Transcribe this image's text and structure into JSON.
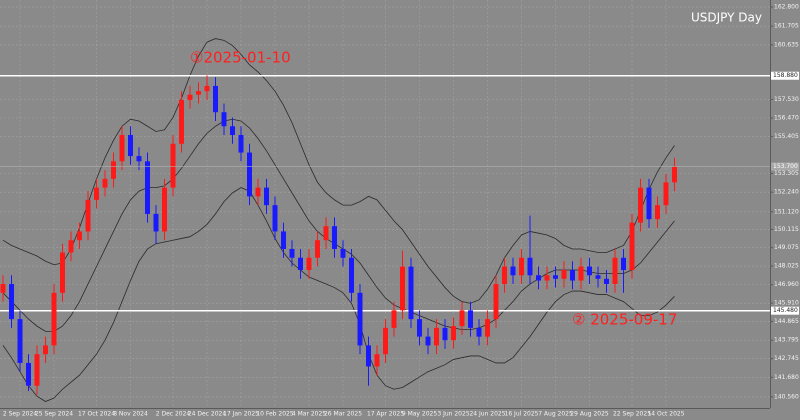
{
  "chart_data": {
    "type": "candlestick",
    "title": "USDJPY  Day",
    "annotations": [
      {
        "text": "①2025-01-10",
        "color": "#ff2020"
      },
      {
        "text": "② 2025-09-17",
        "color": "#ff2020"
      }
    ],
    "categories": [
      null,
      null,
      "2 Sep 2024",
      null,
      null,
      null,
      "25 Sep 2024",
      null,
      null,
      null,
      null,
      "17 Oct 2024",
      null,
      null,
      null,
      "8 Nov 2024",
      null,
      null,
      null,
      null,
      "2 Dec 2024",
      null,
      null,
      null,
      "24 Dec 2024",
      null,
      null,
      null,
      "17 Jan 2025",
      null,
      null,
      null,
      "10 Feb 2025",
      null,
      null,
      null,
      "4 Mar 2025",
      null,
      null,
      null,
      "26 Mar 2025",
      null,
      null,
      null,
      null,
      "17 Apr 2025",
      null,
      null,
      null,
      "9 May 2025",
      null,
      null,
      null,
      "3 Jun 2025",
      null,
      null,
      null,
      "24 Jun 2025",
      null,
      null,
      null,
      "16 Jul 2025",
      null,
      null,
      null,
      "7 Aug 2025",
      null,
      null,
      null,
      "29 Aug 2025",
      null,
      null,
      null,
      null,
      "22 Sep 2025",
      null,
      null,
      null,
      "14 Oct 2025",
      null
    ],
    "open": [
      146.5,
      147.0,
      145.0,
      142.5,
      141.2,
      143.0,
      143.5,
      146.5,
      148.8,
      149.5,
      150.0,
      151.8,
      152.5,
      153.0,
      154.0,
      155.5,
      154.3,
      154.0,
      151.0,
      150.0,
      152.5,
      155.0,
      157.5,
      157.8,
      158.0,
      158.3,
      156.8,
      156.0,
      155.5,
      154.5,
      152.0,
      152.5,
      151.5,
      150.0,
      149.0,
      148.5,
      147.8,
      148.5,
      149.5,
      150.3,
      149.0,
      148.5,
      146.5,
      143.5,
      142.3,
      143.0,
      144.5,
      145.5,
      148.0,
      145.0,
      144.0,
      143.5,
      144.5,
      143.8,
      144.6,
      145.5,
      144.5,
      144.0,
      145.0,
      147.0,
      148.0,
      147.5,
      148.5,
      147.5,
      147.2,
      147.5,
      147.3,
      147.8,
      147.2,
      148.0,
      147.5,
      147.3,
      147.0,
      148.5,
      147.8,
      150.5,
      152.5,
      150.7,
      151.5,
      152.8
    ],
    "high": [
      147.5,
      147.5,
      145.5,
      143.0,
      143.5,
      144.0,
      147.0,
      149.3,
      150.0,
      150.5,
      152.3,
      153.0,
      153.5,
      154.5,
      156.0,
      156.0,
      154.8,
      154.5,
      151.5,
      153.0,
      155.5,
      158.0,
      158.3,
      158.5,
      158.9,
      158.8,
      157.3,
      156.5,
      156.0,
      155.0,
      153.0,
      153.0,
      152.0,
      150.5,
      149.5,
      149.0,
      149.0,
      150.0,
      150.8,
      150.8,
      149.5,
      149.0,
      147.0,
      144.0,
      143.5,
      145.0,
      146.0,
      148.9,
      148.5,
      145.5,
      144.5,
      145.0,
      145.0,
      145.1,
      146.0,
      146.0,
      145.0,
      145.5,
      147.5,
      148.5,
      148.5,
      149.0,
      150.9,
      148.0,
      148.0,
      148.0,
      148.3,
      148.3,
      148.5,
      148.5,
      148.0,
      147.8,
      149.0,
      149.0,
      151.0,
      153.0,
      153.0,
      152.0,
      153.3,
      154.2
    ],
    "low": [
      146.0,
      144.5,
      142.0,
      140.9,
      140.7,
      142.5,
      143.0,
      146.0,
      148.3,
      149.0,
      149.5,
      151.3,
      152.0,
      152.5,
      153.5,
      153.8,
      153.5,
      150.5,
      149.3,
      149.5,
      152.0,
      154.5,
      157.0,
      157.3,
      157.5,
      156.3,
      155.5,
      155.0,
      154.0,
      151.5,
      151.5,
      151.0,
      149.5,
      148.5,
      148.0,
      147.3,
      147.3,
      148.0,
      149.0,
      148.5,
      148.0,
      146.0,
      143.0,
      141.2,
      141.8,
      142.5,
      144.0,
      145.0,
      144.5,
      143.5,
      143.0,
      143.0,
      143.3,
      143.3,
      144.1,
      144.0,
      143.5,
      143.5,
      144.5,
      146.5,
      147.0,
      147.0,
      147.0,
      146.7,
      146.7,
      146.8,
      146.8,
      146.7,
      146.7,
      147.0,
      146.8,
      146.5,
      146.5,
      146.5,
      147.3,
      150.0,
      150.2,
      150.2,
      151.0,
      152.3
    ],
    "close": [
      147.0,
      145.0,
      142.5,
      141.2,
      143.0,
      143.5,
      146.5,
      148.8,
      149.5,
      150.0,
      151.8,
      152.5,
      153.0,
      154.0,
      155.5,
      154.3,
      154.0,
      151.0,
      150.0,
      152.5,
      155.0,
      157.5,
      157.8,
      158.0,
      158.3,
      156.8,
      156.0,
      155.5,
      154.5,
      152.0,
      152.5,
      151.5,
      150.0,
      149.0,
      148.5,
      147.8,
      148.5,
      149.5,
      150.3,
      149.0,
      148.5,
      146.5,
      143.5,
      142.3,
      143.0,
      144.5,
      145.5,
      148.0,
      145.0,
      144.0,
      143.5,
      144.5,
      143.8,
      144.6,
      145.5,
      144.5,
      144.0,
      145.0,
      147.0,
      148.0,
      147.5,
      148.5,
      147.5,
      147.2,
      147.5,
      147.3,
      147.8,
      147.2,
      148.0,
      147.5,
      147.3,
      147.0,
      148.5,
      147.8,
      150.5,
      152.5,
      150.7,
      151.5,
      152.8,
      153.7
    ],
    "up_color": "#ff1a1a",
    "down_color": "#1a1aff",
    "bands": {
      "color": "#2a2a2a",
      "upper": [
        149.5,
        149.2,
        149.0,
        148.8,
        148.6,
        148.3,
        148.1,
        148.2,
        149.0,
        150.2,
        151.6,
        153.0,
        154.2,
        155.2,
        156.0,
        156.4,
        156.3,
        156.0,
        155.7,
        155.8,
        156.5,
        157.6,
        158.9,
        160.0,
        160.8,
        161.0,
        160.9,
        160.6,
        160.1,
        159.5,
        159.1,
        158.6,
        158.0,
        157.2,
        156.2,
        155.0,
        153.8,
        152.8,
        152.2,
        151.8,
        151.5,
        151.5,
        151.7,
        152.0,
        151.8,
        151.2,
        150.6,
        150.1,
        149.4,
        148.7,
        148.0,
        147.4,
        146.8,
        146.3,
        146.0,
        145.9,
        146.1,
        146.7,
        147.5,
        148.5,
        149.2,
        149.8,
        150.0,
        149.9,
        149.8,
        149.6,
        149.2,
        149.0,
        149.0,
        148.9,
        148.8,
        148.8,
        149.0,
        149.2,
        150.0,
        151.2,
        152.4,
        153.4,
        154.2,
        154.9
      ],
      "middle": [
        146.5,
        146.0,
        145.5,
        145.0,
        144.6,
        144.3,
        144.3,
        144.6,
        145.2,
        146.0,
        147.0,
        148.0,
        149.0,
        150.0,
        151.0,
        151.8,
        152.3,
        152.5,
        152.5,
        152.6,
        153.0,
        153.6,
        154.3,
        155.0,
        155.6,
        156.0,
        156.3,
        156.4,
        156.3,
        155.9,
        155.3,
        154.6,
        153.8,
        153.0,
        152.2,
        151.4,
        150.6,
        150.0,
        149.6,
        149.3,
        149.0,
        148.7,
        148.2,
        147.5,
        146.8,
        146.2,
        145.8,
        145.6,
        145.4,
        145.2,
        145.0,
        144.8,
        144.6,
        144.5,
        144.4,
        144.4,
        144.5,
        144.7,
        145.0,
        145.5,
        146.0,
        146.6,
        147.0,
        147.3,
        147.6,
        147.8,
        147.8,
        147.8,
        147.8,
        147.7,
        147.6,
        147.6,
        147.6,
        147.6,
        147.8,
        148.2,
        148.8,
        149.4,
        150.0,
        150.6
      ],
      "lower": [
        143.5,
        142.8,
        142.0,
        141.2,
        140.6,
        140.3,
        140.5,
        141.0,
        141.4,
        141.8,
        142.4,
        143.0,
        143.8,
        144.8,
        146.0,
        147.2,
        148.3,
        149.0,
        149.3,
        149.4,
        149.5,
        149.6,
        149.7,
        150.0,
        150.4,
        151.0,
        151.7,
        152.2,
        152.5,
        152.3,
        151.5,
        150.6,
        149.6,
        148.8,
        148.2,
        147.8,
        147.4,
        147.2,
        147.0,
        146.8,
        146.5,
        145.9,
        144.7,
        143.0,
        141.8,
        141.2,
        141.0,
        141.1,
        141.4,
        141.7,
        142.0,
        142.2,
        142.4,
        142.7,
        142.8,
        142.9,
        142.9,
        142.7,
        142.5,
        142.5,
        142.8,
        143.4,
        144.0,
        144.7,
        145.4,
        146.0,
        146.4,
        146.6,
        146.6,
        146.5,
        146.4,
        146.4,
        146.2,
        146.0,
        145.6,
        145.2,
        145.2,
        145.4,
        145.8,
        146.3
      ]
    },
    "hlines": [
      {
        "value": 158.88,
        "label": "158.880"
      },
      {
        "value": 145.48,
        "label": "145.480"
      }
    ],
    "hline_color": "#ffffff",
    "last_price": {
      "value": 153.7,
      "label": "153.700"
    },
    "ylim": [
      139.93,
      163.2
    ],
    "yticks": [
      {
        "value": 162.8,
        "label": "162.800"
      },
      {
        "value": 161.705,
        "label": "161.705"
      },
      {
        "value": 160.635,
        "label": "160.635"
      },
      {
        "value": 157.53,
        "label": "157.530"
      },
      {
        "value": 156.47,
        "label": "156.470"
      },
      {
        "value": 155.405,
        "label": "155.405"
      },
      {
        "value": 153.305,
        "label": "153.305"
      },
      {
        "value": 152.24,
        "label": "152.240"
      },
      {
        "value": 151.12,
        "label": "151.120"
      },
      {
        "value": 150.115,
        "label": "150.115"
      },
      {
        "value": 149.075,
        "label": "149.075"
      },
      {
        "value": 148.025,
        "label": "148.025"
      },
      {
        "value": 146.96,
        "label": "146.960"
      },
      {
        "value": 145.91,
        "label": "145.910"
      },
      {
        "value": 144.865,
        "label": "144.865"
      },
      {
        "value": 143.795,
        "label": "143.795"
      },
      {
        "value": 142.745,
        "label": "142.745"
      },
      {
        "value": 141.68,
        "label": "141.680"
      },
      {
        "value": 140.56,
        "label": "140.560"
      }
    ],
    "grid": true
  }
}
